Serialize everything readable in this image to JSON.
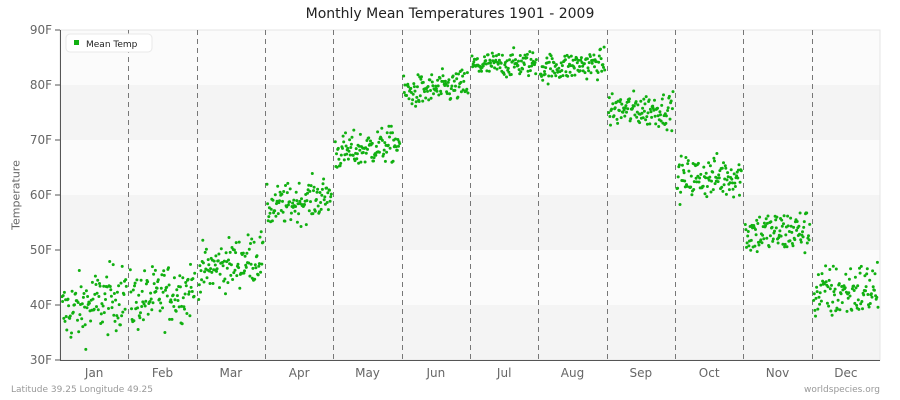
{
  "title": "Monthly Mean Temperatures 1901 - 2009",
  "footer": {
    "location": "Latitude 39.25 Longitude 49.25",
    "source": "worldspecies.org"
  },
  "colors": {
    "series": "#11b011",
    "band_light": "#fbfbfb",
    "band_dark": "#f4f4f4",
    "axis": "#555555",
    "divider": "#777777"
  },
  "chart_data": {
    "type": "scatter",
    "title": "Monthly Mean Temperatures 1901 - 2009",
    "xlabel": "",
    "ylabel": "Temperature",
    "ylim": [
      30,
      90
    ],
    "yticks": [
      "30F",
      "40F",
      "50F",
      "60F",
      "70F",
      "80F",
      "90F"
    ],
    "categories": [
      "Jan",
      "Feb",
      "Mar",
      "Apr",
      "May",
      "Jun",
      "Jul",
      "Aug",
      "Sep",
      "Oct",
      "Nov",
      "Dec"
    ],
    "legend": {
      "position": "top-left",
      "entries": [
        "Mean Temp"
      ]
    },
    "grid": {
      "horizontal_bands": true,
      "vertical_month_dividers": "dashed"
    },
    "series": [
      {
        "name": "Mean Temp",
        "points_per_month": 109,
        "monthly_summary": [
          {
            "month": "Jan",
            "start": 38.5,
            "end": 42.0,
            "spread": 3.3,
            "min": 30.0,
            "max": 53.0
          },
          {
            "month": "Feb",
            "start": 40.5,
            "end": 43.0,
            "spread": 3.0,
            "min": 32.0,
            "max": 49.0
          },
          {
            "month": "Mar",
            "start": 46.0,
            "end": 49.0,
            "spread": 2.5,
            "min": 41.0,
            "max": 55.0
          },
          {
            "month": "Apr",
            "start": 57.5,
            "end": 60.0,
            "spread": 2.0,
            "min": 53.0,
            "max": 65.0
          },
          {
            "month": "May",
            "start": 67.5,
            "end": 69.5,
            "spread": 1.8,
            "min": 64.0,
            "max": 72.5
          },
          {
            "month": "Jun",
            "start": 78.5,
            "end": 80.0,
            "spread": 1.6,
            "min": 75.0,
            "max": 84.0
          },
          {
            "month": "Jul",
            "start": 83.5,
            "end": 84.0,
            "spread": 1.3,
            "min": 81.0,
            "max": 87.5
          },
          {
            "month": "Aug",
            "start": 83.0,
            "end": 84.0,
            "spread": 1.4,
            "min": 79.0,
            "max": 87.5
          },
          {
            "month": "Sep",
            "start": 75.5,
            "end": 75.5,
            "spread": 1.7,
            "min": 71.0,
            "max": 80.0
          },
          {
            "month": "Oct",
            "start": 63.0,
            "end": 63.5,
            "spread": 2.1,
            "min": 57.0,
            "max": 68.0
          },
          {
            "month": "Nov",
            "start": 53.0,
            "end": 53.5,
            "spread": 2.2,
            "min": 45.0,
            "max": 58.0
          },
          {
            "month": "Dec",
            "start": 42.0,
            "end": 43.0,
            "spread": 2.8,
            "min": 35.0,
            "max": 51.5
          }
        ]
      }
    ]
  }
}
